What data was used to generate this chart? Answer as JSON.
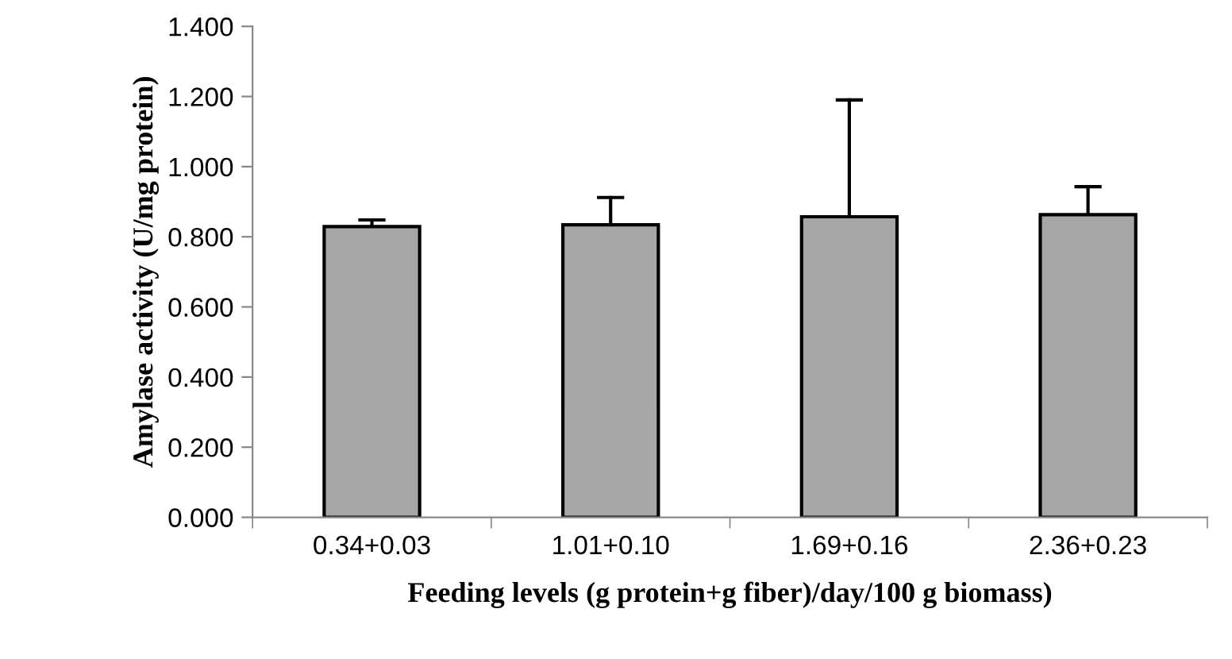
{
  "chart_data": {
    "type": "bar",
    "ylabel": "Amylase activity (U/mg protein)",
    "xlabel": "Feeding levels (g protein+g fiber)/day/100 g biomass)",
    "categories": [
      "0.34+0.03",
      "1.01+0.10",
      "1.69+0.16",
      "2.36+0.23"
    ],
    "values": [
      0.829,
      0.834,
      0.857,
      0.863
    ],
    "errors": [
      [
        0.829,
        0.848
      ],
      [
        0.834,
        0.912
      ],
      [
        0.857,
        1.19
      ],
      [
        0.863,
        0.943
      ]
    ],
    "color": "#a6a6a6",
    "ylim": [
      0,
      1.4
    ],
    "yticks": [
      {
        "value": 0,
        "label": "0.000"
      },
      {
        "value": 0.2,
        "label": "0.200"
      },
      {
        "value": 0.4,
        "label": "0.400"
      },
      {
        "value": 0.6,
        "label": "0.600"
      },
      {
        "value": 0.8,
        "label": "0.800"
      },
      {
        "value": 1.0,
        "label": "1.000"
      },
      {
        "value": 1.2,
        "label": "1.200"
      },
      {
        "value": 1.4,
        "label": "1.400"
      }
    ],
    "grid": false,
    "legend": false
  }
}
